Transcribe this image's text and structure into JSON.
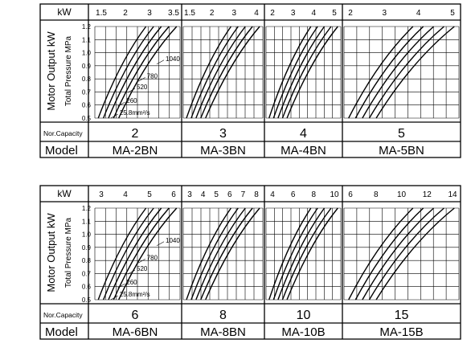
{
  "panels": [
    {
      "kw_label": "kW",
      "side_label": "Motor Output kW",
      "y_label": "Total Pressure MPa",
      "y_ticks": [
        "1.2",
        "1.1",
        "1.0",
        "0.9",
        "0.8",
        "0.7",
        "0.6",
        "0.5"
      ],
      "capacity_label": "Nor.Capacity",
      "model_label": "Model",
      "viscosity_labels": [
        "1040",
        "780",
        "520",
        "260",
        "25.8mm²/s"
      ],
      "charts": [
        {
          "kw_ticks": [
            "1.5",
            "2",
            "3",
            "3.5"
          ],
          "capacity": "2",
          "model": "MA-2BN"
        },
        {
          "kw_ticks": [
            "1.5",
            "2",
            "3",
            "4"
          ],
          "capacity": "3",
          "model": "MA-3BN"
        },
        {
          "kw_ticks": [
            "2",
            "3",
            "4",
            "5"
          ],
          "capacity": "4",
          "model": "MA-4BN"
        },
        {
          "kw_ticks": [
            "2",
            "3",
            "4",
            "5"
          ],
          "capacity": "5",
          "model": "MA-5BN"
        }
      ]
    },
    {
      "kw_label": "kW",
      "side_label": "Motor Output kW",
      "y_label": "Total Pressure MPa",
      "y_ticks": [
        "1.2",
        "1.1",
        "1.0",
        "0.9",
        "0.8",
        "0.7",
        "0.6",
        "0.5"
      ],
      "capacity_label": "Nor.Capacity",
      "model_label": "Model",
      "viscosity_labels": [
        "1040",
        "780",
        "520",
        "260",
        "25.8mm²/s"
      ],
      "charts": [
        {
          "kw_ticks": [
            "3",
            "4",
            "5",
            "6"
          ],
          "capacity": "6",
          "model": "MA-6BN"
        },
        {
          "kw_ticks": [
            "3",
            "4",
            "5",
            "6",
            "7",
            "8"
          ],
          "capacity": "8",
          "model": "MA-8BN"
        },
        {
          "kw_ticks": [
            "4",
            "6",
            "8",
            "10"
          ],
          "capacity": "10",
          "model": "MA-10B"
        },
        {
          "kw_ticks": [
            "6",
            "8",
            "10",
            "12",
            "14"
          ],
          "capacity": "15",
          "model": "MA-15B"
        }
      ]
    }
  ],
  "chart_data": [
    {
      "type": "line",
      "model": "MA-2BN",
      "capacity": 2,
      "kw_ticks": [
        1.5,
        2,
        3,
        3.5
      ],
      "y_range": [
        0.5,
        1.2
      ],
      "curve_labels": [
        "1040",
        "780",
        "520",
        "260",
        "25.8mm²/s"
      ]
    },
    {
      "type": "line",
      "model": "MA-3BN",
      "capacity": 3,
      "kw_ticks": [
        1.5,
        2,
        3,
        4
      ],
      "y_range": [
        0.5,
        1.2
      ]
    },
    {
      "type": "line",
      "model": "MA-4BN",
      "capacity": 4,
      "kw_ticks": [
        2,
        3,
        4,
        5
      ],
      "y_range": [
        0.5,
        1.2
      ]
    },
    {
      "type": "line",
      "model": "MA-5BN",
      "capacity": 5,
      "kw_ticks": [
        2,
        3,
        4,
        5
      ],
      "y_range": [
        0.5,
        1.2
      ]
    },
    {
      "type": "line",
      "model": "MA-6BN",
      "capacity": 6,
      "kw_ticks": [
        3,
        4,
        5,
        6
      ],
      "y_range": [
        0.5,
        1.2
      ],
      "curve_labels": [
        "1040",
        "780",
        "520",
        "260",
        "25.8mm²/s"
      ]
    },
    {
      "type": "line",
      "model": "MA-8BN",
      "capacity": 8,
      "kw_ticks": [
        3,
        4,
        5,
        6,
        7,
        8
      ],
      "y_range": [
        0.5,
        1.2
      ]
    },
    {
      "type": "line",
      "model": "MA-10B",
      "capacity": 10,
      "kw_ticks": [
        4,
        6,
        8,
        10
      ],
      "y_range": [
        0.5,
        1.2
      ]
    },
    {
      "type": "line",
      "model": "MA-15B",
      "capacity": 15,
      "kw_ticks": [
        6,
        8,
        10,
        12,
        14
      ],
      "y_range": [
        0.5,
        1.2
      ]
    }
  ]
}
